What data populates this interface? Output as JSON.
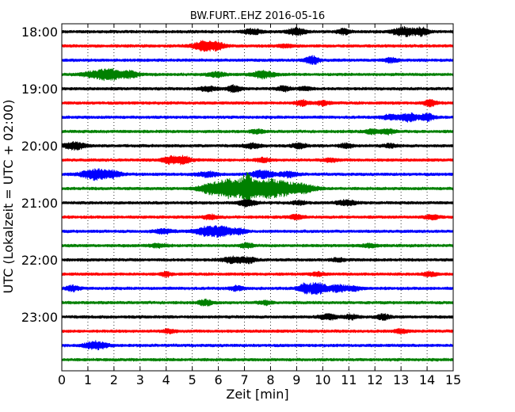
{
  "chart_data": {
    "type": "line",
    "title": "BW.FURT..EHZ 2016-05-16",
    "xlabel": "Zeit  [min]",
    "ylabel": "UTC (Lokalzeit = UTC + 02:00)",
    "xlim": [
      0,
      15
    ],
    "x_ticks": [
      "0",
      "1",
      "2",
      "3",
      "4",
      "5",
      "6",
      "7",
      "8",
      "9",
      "10",
      "11",
      "12",
      "13",
      "14",
      "15"
    ],
    "y_tick_labels": [
      "18:00",
      "19:00",
      "20:00",
      "21:00",
      "22:00",
      "23:00"
    ],
    "grid": "vertical dotted",
    "trace_interval_min": 15,
    "trace_colors": [
      "#000000",
      "#ff0000",
      "#0000ff",
      "#008000"
    ],
    "traces": [
      {
        "start": "18:00",
        "bursts": [
          [
            7.3,
            0.4,
            0.6
          ],
          [
            9.0,
            0.4,
            0.8
          ],
          [
            10.8,
            0.3,
            0.6
          ],
          [
            13.1,
            0.5,
            1.0
          ],
          [
            13.8,
            0.3,
            0.9
          ]
        ]
      },
      {
        "start": "18:15",
        "bursts": [
          [
            5.5,
            0.5,
            1.2
          ],
          [
            6.0,
            0.3,
            0.6
          ],
          [
            8.6,
            0.3,
            0.4
          ]
        ]
      },
      {
        "start": "18:30",
        "bursts": [
          [
            9.6,
            0.3,
            0.9
          ],
          [
            12.6,
            0.3,
            0.5
          ]
        ]
      },
      {
        "start": "18:45",
        "bursts": [
          [
            1.3,
            0.6,
            0.7
          ],
          [
            1.9,
            0.5,
            1.1
          ],
          [
            2.6,
            0.4,
            0.7
          ],
          [
            5.9,
            0.4,
            0.5
          ],
          [
            7.7,
            0.5,
            0.8
          ]
        ]
      },
      {
        "start": "19:00",
        "bursts": [
          [
            5.6,
            0.4,
            0.5
          ],
          [
            6.6,
            0.3,
            0.7
          ],
          [
            8.5,
            0.3,
            0.5
          ],
          [
            9.3,
            0.3,
            0.4
          ]
        ]
      },
      {
        "start": "19:15",
        "bursts": [
          [
            9.2,
            0.3,
            0.6
          ],
          [
            10.0,
            0.3,
            0.5
          ],
          [
            14.1,
            0.3,
            0.7
          ]
        ]
      },
      {
        "start": "19:30",
        "bursts": [
          [
            12.6,
            0.4,
            0.5
          ],
          [
            13.3,
            0.4,
            0.9
          ],
          [
            14.0,
            0.3,
            0.8
          ]
        ]
      },
      {
        "start": "19:45",
        "bursts": [
          [
            7.5,
            0.3,
            0.4
          ],
          [
            11.9,
            0.3,
            0.5
          ],
          [
            12.5,
            0.3,
            0.6
          ]
        ]
      },
      {
        "start": "20:00",
        "bursts": [
          [
            0.5,
            0.5,
            0.8
          ],
          [
            7.3,
            0.4,
            0.5
          ],
          [
            9.1,
            0.3,
            0.6
          ],
          [
            10.9,
            0.3,
            0.5
          ],
          [
            12.6,
            0.3,
            0.4
          ]
        ]
      },
      {
        "start": "20:15",
        "bursts": [
          [
            4.1,
            0.3,
            0.7
          ],
          [
            4.6,
            0.4,
            0.9
          ],
          [
            7.7,
            0.3,
            0.5
          ],
          [
            10.3,
            0.3,
            0.4
          ]
        ]
      },
      {
        "start": "20:30",
        "bursts": [
          [
            1.3,
            0.6,
            1.2
          ],
          [
            2.0,
            0.4,
            0.6
          ],
          [
            5.6,
            0.5,
            0.5
          ],
          [
            7.7,
            0.5,
            0.9
          ],
          [
            8.7,
            0.4,
            0.6
          ]
        ]
      },
      {
        "start": "20:45",
        "bursts": [
          [
            5.8,
            0.6,
            1.4
          ],
          [
            6.5,
            0.5,
            2.0
          ],
          [
            7.1,
            0.3,
            3.4
          ],
          [
            7.6,
            0.4,
            1.6
          ],
          [
            8.0,
            0.3,
            1.0
          ],
          [
            8.4,
            0.6,
            1.6
          ],
          [
            9.2,
            0.6,
            1.0
          ]
        ]
      },
      {
        "start": "21:00",
        "bursts": [
          [
            7.1,
            0.4,
            0.7
          ],
          [
            9.1,
            0.3,
            0.4
          ],
          [
            10.9,
            0.4,
            0.6
          ]
        ]
      },
      {
        "start": "21:15",
        "bursts": [
          [
            5.7,
            0.3,
            0.5
          ],
          [
            9.0,
            0.3,
            0.5
          ],
          [
            14.2,
            0.3,
            0.6
          ]
        ]
      },
      {
        "start": "21:30",
        "bursts": [
          [
            3.9,
            0.4,
            0.5
          ],
          [
            5.6,
            0.6,
            1.0
          ],
          [
            6.2,
            0.4,
            0.9
          ],
          [
            6.8,
            0.3,
            0.6
          ]
        ]
      },
      {
        "start": "21:45",
        "bursts": [
          [
            3.7,
            0.4,
            0.4
          ],
          [
            7.1,
            0.3,
            0.5
          ],
          [
            11.8,
            0.3,
            0.4
          ]
        ]
      },
      {
        "start": "22:00",
        "bursts": [
          [
            6.6,
            0.5,
            0.7
          ],
          [
            7.2,
            0.3,
            0.5
          ],
          [
            10.6,
            0.3,
            0.4
          ]
        ]
      },
      {
        "start": "22:15",
        "bursts": [
          [
            4.0,
            0.2,
            0.6
          ],
          [
            9.8,
            0.3,
            0.4
          ],
          [
            14.1,
            0.3,
            0.5
          ]
        ]
      },
      {
        "start": "22:30",
        "bursts": [
          [
            0.4,
            0.3,
            0.6
          ],
          [
            6.7,
            0.3,
            0.5
          ],
          [
            9.3,
            0.3,
            1.0
          ],
          [
            9.8,
            0.4,
            1.3
          ],
          [
            10.6,
            0.4,
            0.8
          ],
          [
            11.2,
            0.3,
            0.5
          ]
        ]
      },
      {
        "start": "22:45",
        "bursts": [
          [
            5.5,
            0.3,
            0.6
          ],
          [
            7.8,
            0.3,
            0.4
          ]
        ]
      },
      {
        "start": "23:00",
        "bursts": [
          [
            10.2,
            0.4,
            0.6
          ],
          [
            11.1,
            0.3,
            0.5
          ],
          [
            12.3,
            0.3,
            0.6
          ]
        ]
      },
      {
        "start": "23:15",
        "bursts": [
          [
            4.1,
            0.3,
            0.4
          ],
          [
            13.0,
            0.3,
            0.4
          ]
        ]
      },
      {
        "start": "23:30",
        "bursts": [
          [
            1.3,
            0.5,
            0.9
          ]
        ]
      },
      {
        "start": "23:45",
        "bursts": []
      }
    ]
  }
}
